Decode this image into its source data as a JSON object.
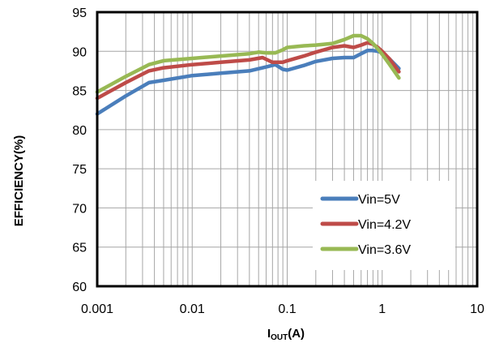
{
  "chart_data": {
    "type": "line",
    "x_scale": "log",
    "xlim": [
      0.001,
      10
    ],
    "ylim": [
      60,
      95
    ],
    "grid": true,
    "legend_position": "bottom-right",
    "xlabel": {
      "main": "I",
      "sub": "OUT",
      "suffix": "(A)"
    },
    "ylabel": "EFFICIENCY(%)",
    "x_ticks": [
      "0.001",
      "0.01",
      "0.1",
      "1",
      "10"
    ],
    "y_ticks": [
      "60",
      "65",
      "70",
      "75",
      "80",
      "85",
      "90",
      "95"
    ],
    "series": [
      {
        "name": "Vin=5V",
        "color": "#4A7EBB",
        "x": [
          0.001,
          0.002,
          0.0035,
          0.005,
          0.01,
          0.02,
          0.04,
          0.06,
          0.075,
          0.09,
          0.1,
          0.15,
          0.2,
          0.3,
          0.4,
          0.5,
          0.6,
          0.7,
          0.8,
          0.9,
          1.0,
          1.2,
          1.5
        ],
        "y": [
          82.0,
          84.3,
          86.0,
          86.3,
          86.9,
          87.2,
          87.5,
          88.0,
          88.3,
          87.7,
          87.6,
          88.2,
          88.7,
          89.1,
          89.2,
          89.2,
          89.7,
          90.1,
          90.1,
          90.0,
          89.8,
          89.0,
          87.8
        ]
      },
      {
        "name": "Vin=4.2V",
        "color": "#BE4B48",
        "x": [
          0.001,
          0.002,
          0.0035,
          0.005,
          0.01,
          0.02,
          0.04,
          0.055,
          0.07,
          0.09,
          0.1,
          0.15,
          0.2,
          0.3,
          0.4,
          0.5,
          0.6,
          0.7,
          0.8,
          0.9,
          1.0,
          1.2,
          1.5
        ],
        "y": [
          84.0,
          86.0,
          87.5,
          87.9,
          88.3,
          88.6,
          88.9,
          89.2,
          88.6,
          88.6,
          88.8,
          89.4,
          89.9,
          90.5,
          90.7,
          90.5,
          90.8,
          91.1,
          90.9,
          90.5,
          90.0,
          89.0,
          87.4
        ]
      },
      {
        "name": "Vin=3.6V",
        "color": "#98B954",
        "x": [
          0.001,
          0.002,
          0.0035,
          0.005,
          0.01,
          0.02,
          0.04,
          0.05,
          0.06,
          0.075,
          0.09,
          0.1,
          0.15,
          0.2,
          0.3,
          0.4,
          0.5,
          0.6,
          0.7,
          0.8,
          0.9,
          1.0,
          1.2,
          1.5
        ],
        "y": [
          84.8,
          86.8,
          88.3,
          88.8,
          89.1,
          89.4,
          89.7,
          89.9,
          89.8,
          89.8,
          90.2,
          90.5,
          90.7,
          90.8,
          91.0,
          91.5,
          92.0,
          92.0,
          91.6,
          91.0,
          90.3,
          89.6,
          88.3,
          86.6
        ]
      }
    ]
  }
}
